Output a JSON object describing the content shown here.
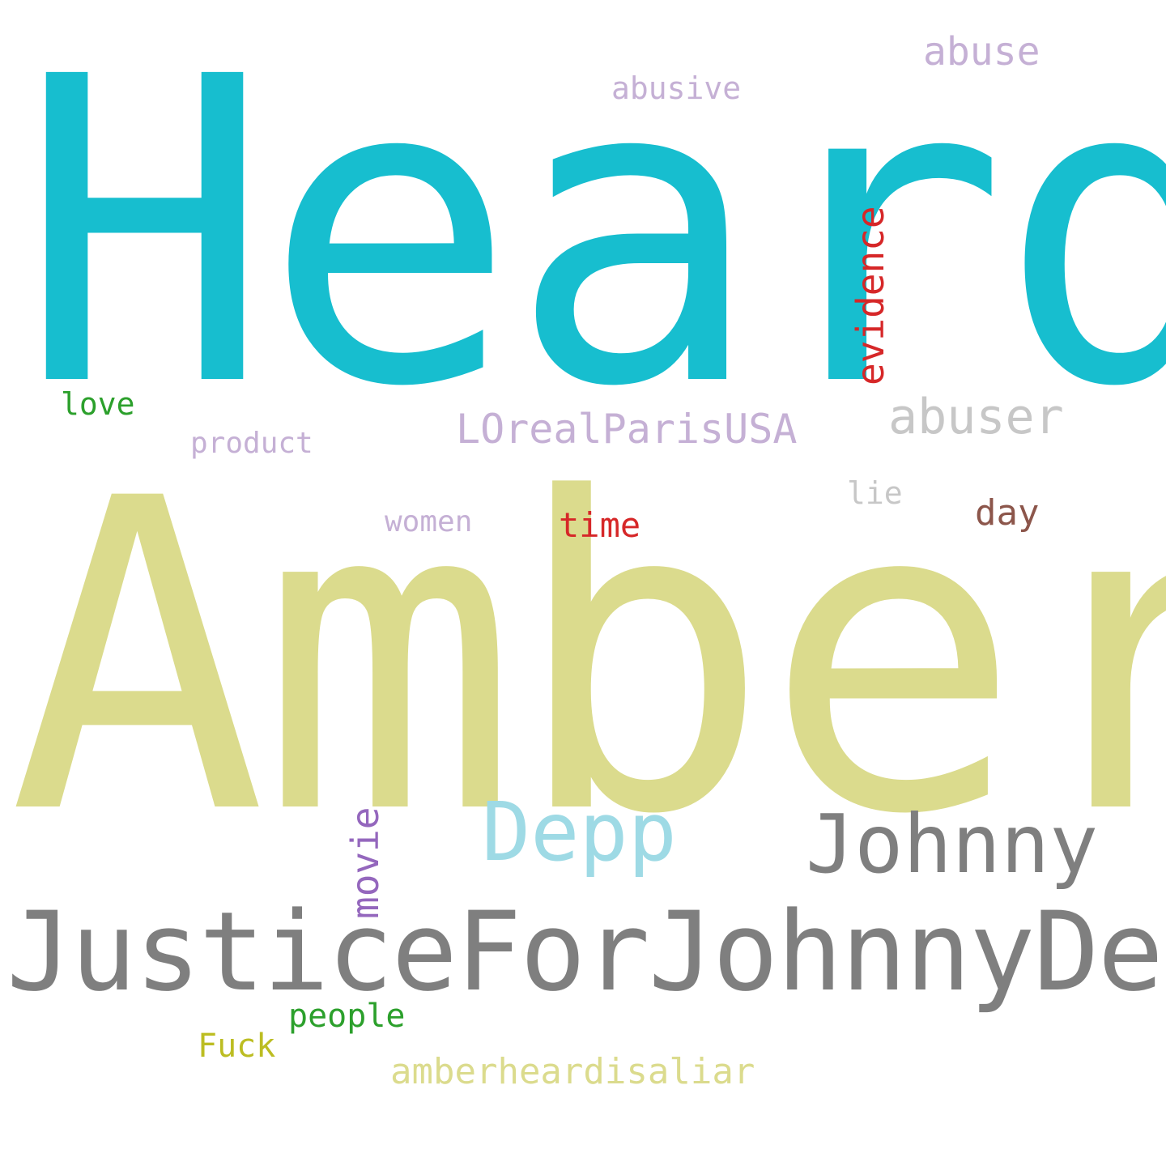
{
  "words": [
    {
      "id": "heard",
      "text": "Heard",
      "color": "#17becf",
      "orientation": "horizontal"
    },
    {
      "id": "amber",
      "text": "Amber",
      "color": "#dbdb8d",
      "orientation": "horizontal"
    },
    {
      "id": "justice",
      "text": "JusticeForJohnnyDepp",
      "color": "#7f7f7f",
      "orientation": "horizontal"
    },
    {
      "id": "johnny",
      "text": "Johnny",
      "color": "#7f7f7f",
      "orientation": "horizontal"
    },
    {
      "id": "depp",
      "text": "Depp",
      "color": "#9edae5",
      "orientation": "horizontal"
    },
    {
      "id": "movie",
      "text": "movie",
      "color": "#9467bd",
      "orientation": "vertical"
    },
    {
      "id": "evidence",
      "text": "evidence",
      "color": "#d62728",
      "orientation": "vertical"
    },
    {
      "id": "loreal",
      "text": "LOrealParisUSA",
      "color": "#c5b0d5",
      "orientation": "horizontal"
    },
    {
      "id": "abuser",
      "text": "abuser",
      "color": "#c7c7c7",
      "orientation": "horizontal"
    },
    {
      "id": "abuse",
      "text": "abuse",
      "color": "#c5b0d5",
      "orientation": "horizontal"
    },
    {
      "id": "abusive",
      "text": "abusive",
      "color": "#c5b0d5",
      "orientation": "horizontal"
    },
    {
      "id": "love",
      "text": "love",
      "color": "#2ca02c",
      "orientation": "horizontal"
    },
    {
      "id": "product",
      "text": "product",
      "color": "#c5b0d5",
      "orientation": "horizontal"
    },
    {
      "id": "lie",
      "text": "lie",
      "color": "#c7c7c7",
      "orientation": "horizontal"
    },
    {
      "id": "day",
      "text": "day",
      "color": "#8c564b",
      "orientation": "horizontal"
    },
    {
      "id": "women",
      "text": "women",
      "color": "#c5b0d5",
      "orientation": "horizontal"
    },
    {
      "id": "time",
      "text": "time",
      "color": "#d62728",
      "orientation": "horizontal"
    },
    {
      "id": "people",
      "text": "people",
      "color": "#2ca02c",
      "orientation": "horizontal"
    },
    {
      "id": "fuck",
      "text": "Fuck",
      "color": "#bcbd22",
      "orientation": "horizontal"
    },
    {
      "id": "amberheard",
      "text": "amberheardisaliar",
      "color": "#dbdb8d",
      "orientation": "horizontal"
    }
  ]
}
